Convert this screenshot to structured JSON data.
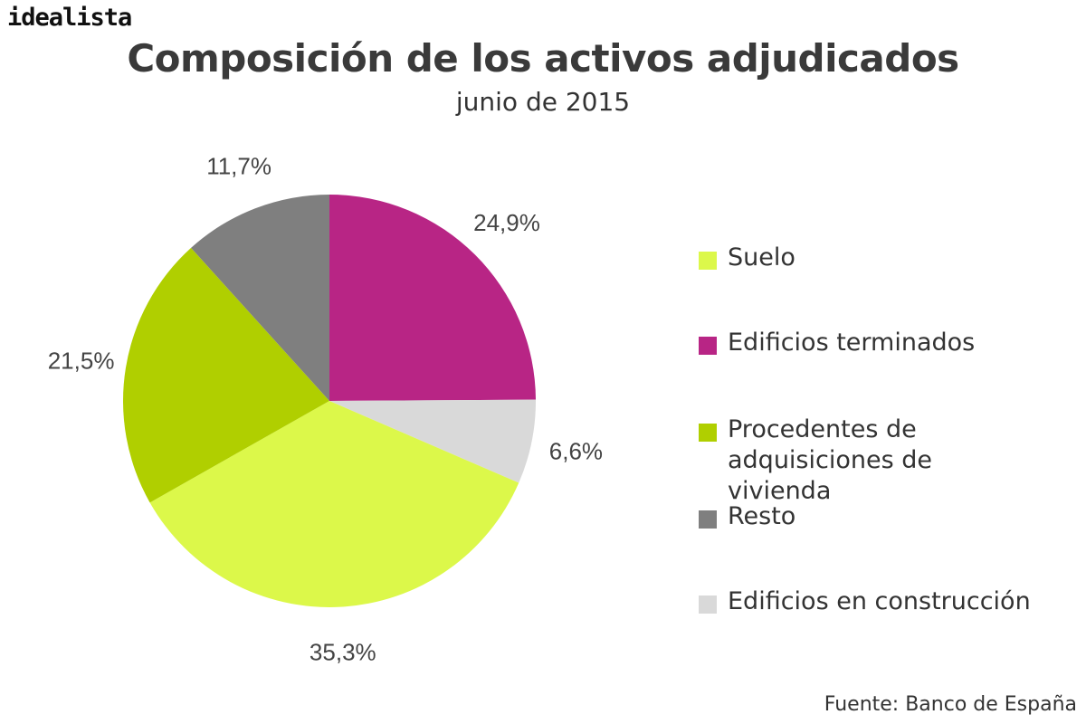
{
  "brand": {
    "logo_text": "idealista"
  },
  "chart_data": {
    "type": "pie",
    "title": "Composición de los activos adjudicados",
    "subtitle": "junio de 2015",
    "source": "Fuente: Banco de España",
    "legend_position": "right",
    "slices": [
      {
        "name": "Edificios terminados",
        "value": 24.9,
        "label": "24,9%",
        "color": "#b82585"
      },
      {
        "name": "Edificios en construcción",
        "value": 6.6,
        "label": "6,6%",
        "color": "#d9d9d9"
      },
      {
        "name": "Suelo",
        "value": 35.3,
        "label": "35,3%",
        "color": "#dcf84a"
      },
      {
        "name": "Procedentes de adquisiciones de vivienda",
        "value": 21.5,
        "label": "21,5%",
        "color": "#b0cf00"
      },
      {
        "name": "Resto",
        "value": 11.7,
        "label": "11,7%",
        "color": "#7f7f7f"
      }
    ],
    "legend": [
      {
        "label": "Suelo",
        "color": "#dcf84a"
      },
      {
        "label": "Edificios terminados",
        "color": "#b82585"
      },
      {
        "label": "Procedentes de adquisiciones de vivienda",
        "color": "#b0cf00"
      },
      {
        "label": "Resto",
        "color": "#7f7f7f"
      },
      {
        "label": "Edificios en construcción",
        "color": "#d9d9d9"
      }
    ]
  }
}
